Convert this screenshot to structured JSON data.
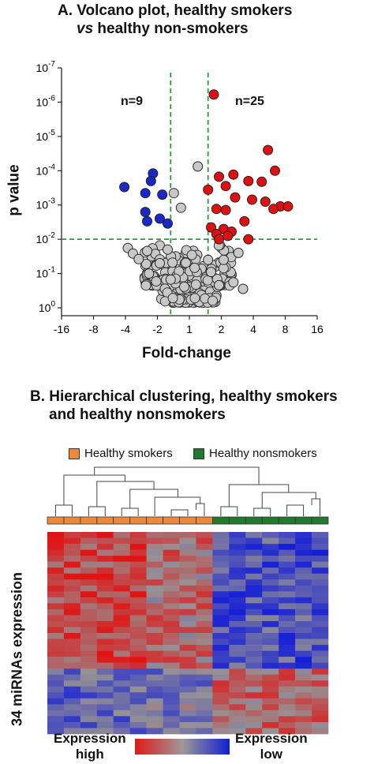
{
  "panel_a": {
    "title_line1": "A. Volcano plot, healthy smokers",
    "title_vs": "vs",
    "title_line2_rest": " healthy non-smokers",
    "n_left": "n=9",
    "n_right": "n=25"
  },
  "panel_b": {
    "title_line1": "B. Hierarchical clustering, healthy smokers",
    "title_line2": "and healthy nonsmokers",
    "legend": [
      {
        "label": "Healthy smokers",
        "color": "#f0883a"
      },
      {
        "label": "Healthy nonsmokers",
        "color": "#1f7a2e"
      }
    ],
    "ylabel": "34 miRNAs expression",
    "scale_left": [
      "Expression",
      "high"
    ],
    "scale_right": [
      "Expression",
      "low"
    ]
  },
  "colors": {
    "up": "#e01010",
    "down": "#1a28c8",
    "ns": "#c8c8c8",
    "threshold": "#2a9a3a"
  },
  "chart_data": [
    {
      "type": "scatter",
      "title": "A. Volcano plot, healthy smokers vs healthy non-smokers",
      "xlabel": "Fold-change",
      "ylabel": "p value",
      "x_scale": "log2",
      "y_scale": "log10 reversed",
      "x_ticks": [
        "-16",
        "-8",
        "-4",
        "-2",
        "1",
        "2",
        "4",
        "8",
        "16"
      ],
      "y_ticks": [
        "10-7",
        "10-6",
        "10-5",
        "10-4",
        "10-3",
        "10-2",
        "10-1",
        "100"
      ],
      "thresholds": {
        "fold_change": [
          -1.5,
          1.5
        ],
        "p_value": 0.01
      },
      "series": [
        {
          "name": "up",
          "points": [
            [
              1.7,
              6e-07
            ],
            [
              5.5,
              2.5e-05
            ],
            [
              3.6,
              0.0002
            ],
            [
              6.4,
              0.0001
            ],
            [
              4.8,
              0.00021
            ],
            [
              1.9,
              0.00015
            ],
            [
              2.6,
              0.00013
            ],
            [
              1.5,
              0.00036
            ],
            [
              2.2,
              0.00028
            ],
            [
              3.9,
              0.0007
            ],
            [
              5.2,
              0.0008
            ],
            [
              2.7,
              0.0006
            ],
            [
              2.2,
              0.0014
            ],
            [
              7.2,
              0.0011
            ],
            [
              8.5,
              0.0011
            ],
            [
              6.2,
              0.0013
            ],
            [
              3.3,
              0.003
            ],
            [
              1.8,
              0.0013
            ],
            [
              1.6,
              0.0045
            ],
            [
              2.1,
              0.005
            ],
            [
              2.5,
              0.006
            ],
            [
              1.8,
              0.007
            ],
            [
              2.3,
              0.008
            ],
            [
              1.9,
              0.01
            ],
            [
              3.6,
              0.01
            ]
          ]
        },
        {
          "name": "down",
          "points": [
            [
              -4.1,
              0.0003
            ],
            [
              -2.2,
              0.00012
            ],
            [
              -2.3,
              0.0002
            ],
            [
              -2.6,
              0.00045
            ],
            [
              -1.8,
              0.0005
            ],
            [
              -2.6,
              0.0016
            ],
            [
              -1.9,
              0.0025
            ],
            [
              -2.5,
              0.003
            ],
            [
              -1.6,
              0.0035
            ]
          ]
        },
        {
          "name": "ns",
          "points": [
            [
              1.2,
              7.5e-05
            ],
            [
              -1.4,
              0.00045
            ],
            [
              -1.2,
              0.0012
            ],
            [
              -3.8,
              0.018
            ],
            [
              -3.4,
              0.026
            ],
            [
              -2.5,
              0.022
            ],
            [
              -1.6,
              0.02
            ],
            [
              2.9,
              0.025
            ],
            [
              2.1,
              0.04
            ],
            [
              3.2,
              0.28
            ],
            [
              2.6,
              0.18
            ],
            [
              1.9,
              0.22
            ],
            [
              1.6,
              0.09
            ],
            [
              -1.9,
              0.05
            ],
            [
              -2.4,
              0.1
            ],
            [
              -3.0,
              0.038
            ],
            [
              -1.5,
              0.15
            ],
            [
              1.5,
              0.04
            ]
          ]
        }
      ]
    },
    {
      "type": "heatmap",
      "title": "B. Hierarchical clustering, healthy smokers and healthy nonsmokers",
      "columns": 17,
      "rows": 34,
      "groups": [
        "Healthy smokers",
        "Healthy smokers",
        "Healthy smokers",
        "Healthy smokers",
        "Healthy smokers",
        "Healthy smokers",
        "Healthy smokers",
        "Healthy smokers",
        "Healthy smokers",
        "Healthy smokers",
        "Healthy nonsmokers",
        "Healthy nonsmokers",
        "Healthy nonsmokers",
        "Healthy nonsmokers",
        "Healthy nonsmokers",
        "Healthy nonsmokers",
        "Healthy nonsmokers"
      ],
      "scale": {
        "low": "Expression high",
        "high": "Expression low"
      }
    }
  ]
}
